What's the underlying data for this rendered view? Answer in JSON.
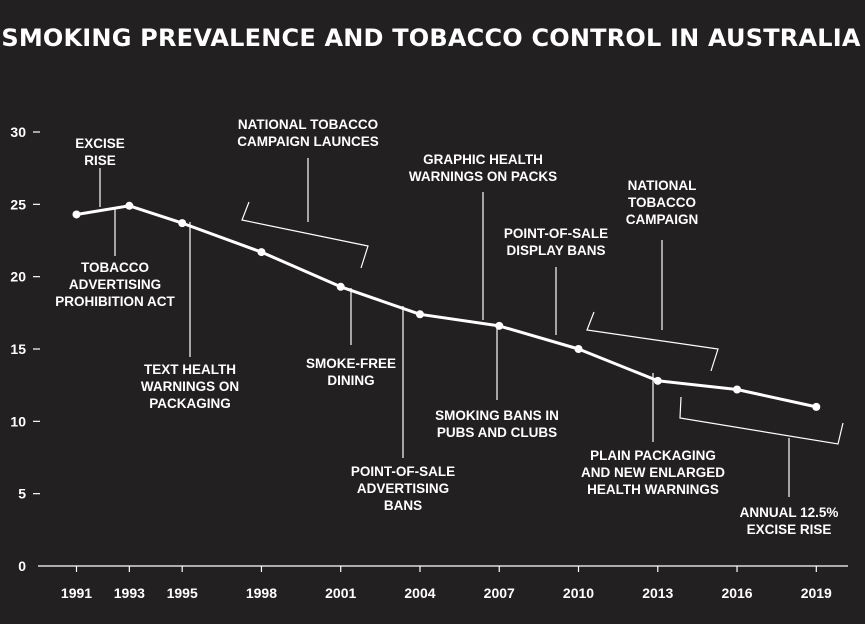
{
  "colors": {
    "background": "#222020",
    "foreground": "#ffffff"
  },
  "chart_data": {
    "type": "line",
    "title": "SMOKING PREVALENCE AND TOBACCO CONTROL IN AUSTRALIA",
    "xlabel": "",
    "ylabel": "",
    "ylim": [
      0,
      30
    ],
    "xlim": [
      1990.3,
      2020.2
    ],
    "grid": false,
    "y_ticks": [
      0,
      5,
      10,
      15,
      20,
      25,
      30
    ],
    "x_ticks": [
      1991,
      1993,
      1995,
      1998,
      2001,
      2004,
      2007,
      2010,
      2013,
      2016,
      2019
    ],
    "series": [
      {
        "name": "Smoking prevalence",
        "x": [
          1991,
          1993,
          1995,
          1998,
          2001,
          2004,
          2007,
          2010,
          2013,
          2016,
          2019
        ],
        "y": [
          24.3,
          24.9,
          23.7,
          21.7,
          19.3,
          17.4,
          16.6,
          15.0,
          12.8,
          12.2,
          11.0
        ]
      }
    ],
    "annotations": [
      {
        "id": "excise-rise",
        "lines": [
          "EXCISE",
          "RISE"
        ],
        "year": 1992.5,
        "value": 24.6,
        "side": "above"
      },
      {
        "id": "tobacco-advertising-prohibition-act",
        "lines": [
          "TOBACCO",
          "ADVERTISING",
          "PROHIBITION ACT"
        ],
        "year": 1992.5,
        "value": 24.6,
        "side": "below"
      },
      {
        "id": "text-health-warnings",
        "lines": [
          "TEXT HEALTH",
          "WARNINGS ON",
          "PACKAGING"
        ],
        "year": 1995,
        "value": 23.7,
        "side": "below"
      },
      {
        "id": "national-tobacco-campaign-launces",
        "lines": [
          "NATIONAL TOBACCO",
          "CAMPAIGN LAUNCES"
        ],
        "span": [
          1997.5,
          2002.5
        ],
        "side": "above"
      },
      {
        "id": "smoke-free-dining",
        "lines": [
          "SMOKE-FREE",
          "DINING"
        ],
        "year": 2001,
        "value": 19.3,
        "side": "below"
      },
      {
        "id": "pos-advertising-bans",
        "lines": [
          "POINT-OF-SALE",
          "ADVERTISING",
          "BANS"
        ],
        "year": 2003.3,
        "value": 18.0,
        "side": "below"
      },
      {
        "id": "graphic-health-warnings",
        "lines": [
          "GRAPHIC HEALTH",
          "WARNINGS ON PACKS"
        ],
        "year": 2006.0,
        "value": 16.9,
        "side": "above"
      },
      {
        "id": "smoking-bans-pubs-clubs",
        "lines": [
          "SMOKING BANS IN",
          "PUBS AND CLUBS"
        ],
        "year": 2006.5,
        "value": 16.8,
        "side": "below"
      },
      {
        "id": "pos-display-bans",
        "lines": [
          "POINT-OF-SALE",
          "DISPLAY BANS"
        ],
        "year": 2008.8,
        "value": 15.8,
        "side": "above"
      },
      {
        "id": "national-tobacco-campaign",
        "lines": [
          "NATIONAL",
          "TOBACCO",
          "CAMPAIGN"
        ],
        "span": [
          2010.5,
          2015.5
        ],
        "side": "above"
      },
      {
        "id": "plain-packaging",
        "lines": [
          "PLAIN PACKAGING",
          "AND NEW ENLARGED",
          "HEALTH WARNINGS"
        ],
        "year": 2012,
        "value": 13.6,
        "side": "below"
      },
      {
        "id": "annual-excise-rise",
        "lines": [
          "ANNUAL 12.5%",
          "EXCISE RISE"
        ],
        "span": [
          2014.0,
          2020.0
        ],
        "side": "below"
      }
    ]
  }
}
